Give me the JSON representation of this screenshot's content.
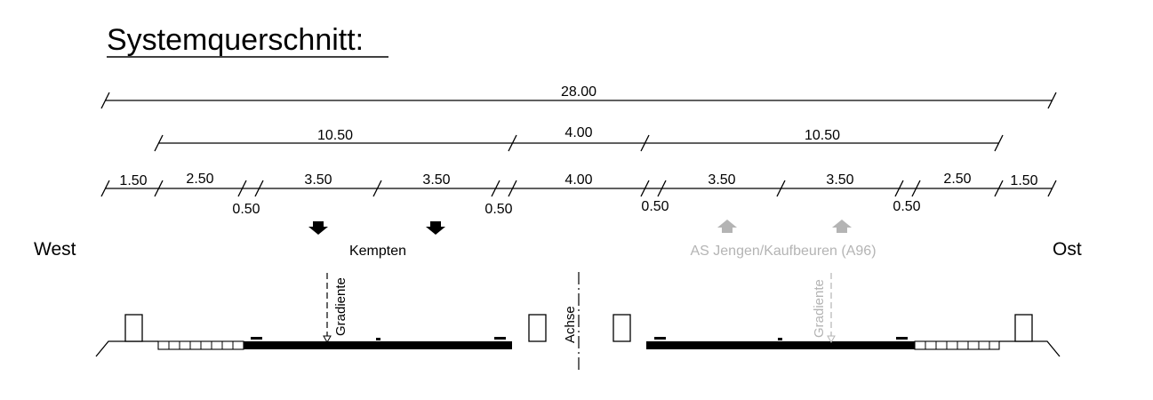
{
  "title": "Systemquerschnitt:",
  "dimensions": {
    "total": "28.00",
    "row2": [
      "10.50",
      "4.00",
      "10.50"
    ],
    "row3": [
      "1.50",
      "2.50",
      "3.50",
      "3.50",
      "4.00",
      "3.50",
      "3.50",
      "2.50",
      "1.50"
    ],
    "row3_below": [
      "0.50",
      "0.50",
      "0.50",
      "0.50"
    ]
  },
  "labels": {
    "west": "West",
    "east": "Ost",
    "dir_west": "Kempten",
    "dir_east": "AS Jengen/Kaufbeuren (A96)",
    "gradient_left": "Gradiente",
    "gradient_right": "Gradiente",
    "axis": "Achse"
  },
  "colors": {
    "ink": "#000000",
    "muted": "#b4b4b4"
  }
}
